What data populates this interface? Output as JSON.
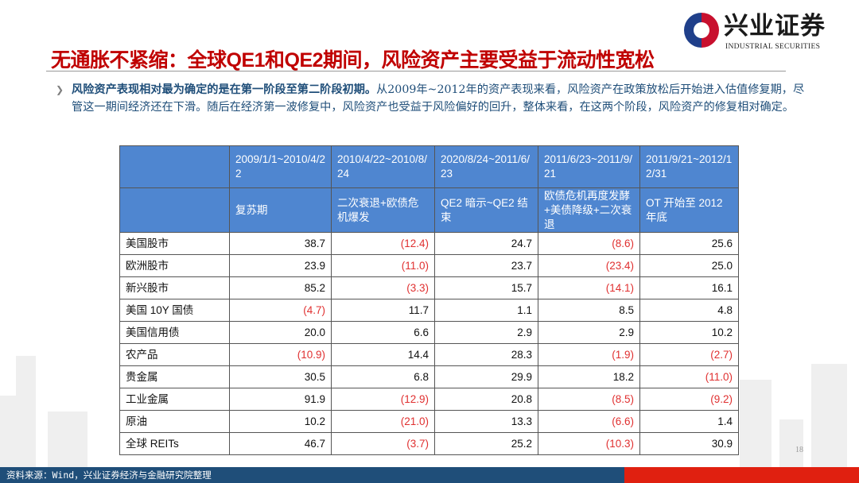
{
  "header": {
    "title": "无通胀不紧缩：全球QE1和QE2期间，风险资产主要受益于流动性宽松",
    "logo_cn": "兴业证券",
    "logo_en": "INDUSTRIAL SECURITIES"
  },
  "paragraph": {
    "bold": "风险资产表现相对最为确定的是在第一阶段至第二阶段初期。",
    "rest": "从2009年~2012年的资产表现来看，风险资产在政策放松后开始进入估值修复期，尽管这一期间经济还在下滑。随后在经济第一波修复中，风险资产也受益于风险偏好的回升，整体来看，在这两个阶段，风险资产的修复相对确定。"
  },
  "table": {
    "dates": [
      "2009/1/1~2010/4/22",
      "2010/4/22~2010/8/24",
      "2020/8/24~2011/6/23",
      "2011/6/23~2011/9/21",
      "2011/9/21~2012/12/31"
    ],
    "phases": [
      "复苏期",
      "二次衰退+欧债危机爆发",
      "QE2 暗示~QE2 结束",
      "欧债危机再度发酵+美债降级+二次衰退",
      "OT 开始至 2012 年底"
    ],
    "rows": [
      {
        "label": "美国股市",
        "values": [
          "38.7",
          "(12.4)",
          "24.7",
          "(8.6)",
          "25.6"
        ]
      },
      {
        "label": "欧洲股市",
        "values": [
          "23.9",
          "(11.0)",
          "23.7",
          "(23.4)",
          "25.0"
        ]
      },
      {
        "label": "新兴股市",
        "values": [
          "85.2",
          "(3.3)",
          "15.7",
          "(14.1)",
          "16.1"
        ]
      },
      {
        "label": "美国 10Y 国债",
        "values": [
          "(4.7)",
          "11.7",
          "1.1",
          "8.5",
          "4.8"
        ]
      },
      {
        "label": "美国信用债",
        "values": [
          "20.0",
          "6.6",
          "2.9",
          "2.9",
          "10.2"
        ]
      },
      {
        "label": "农产品",
        "values": [
          "(10.9)",
          "14.4",
          "28.3",
          "(1.9)",
          "(2.7)"
        ]
      },
      {
        "label": "贵金属",
        "values": [
          "30.5",
          "6.8",
          "29.9",
          "18.2",
          "(11.0)"
        ]
      },
      {
        "label": "工业金属",
        "values": [
          "91.9",
          "(12.9)",
          "20.8",
          "(8.5)",
          "(9.2)"
        ]
      },
      {
        "label": "原油",
        "values": [
          "10.2",
          "(21.0)",
          "13.3",
          "(6.6)",
          "1.4"
        ]
      },
      {
        "label": "全球 REITs",
        "values": [
          "46.7",
          "(3.7)",
          "25.2",
          "(10.3)",
          "30.9"
        ]
      }
    ]
  },
  "page_number": "18",
  "footer": {
    "source": "资料来源：Wind，兴业证券经济与金融研究院整理"
  },
  "colors": {
    "title": "#c00000",
    "header_fill": "#4f86d0",
    "negative": "#e03030",
    "footer_blue": "#1f4e79",
    "footer_red": "#e02010"
  }
}
